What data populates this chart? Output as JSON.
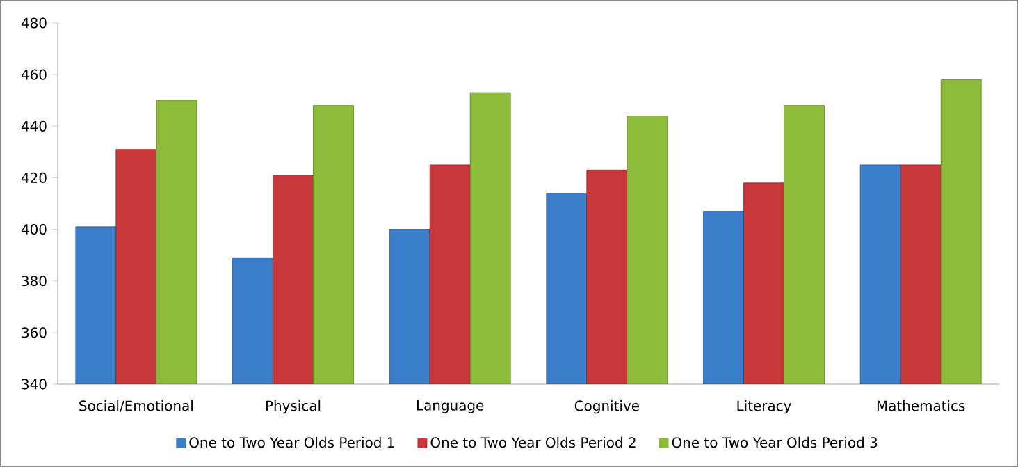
{
  "chart_data": {
    "type": "bar",
    "categories": [
      "Social/Emotional",
      "Physical",
      "Language",
      "Cognitive",
      "Literacy",
      "Mathematics"
    ],
    "series": [
      {
        "name": "One to Two Year Olds Period 1",
        "color": "#3a7dc9",
        "values": [
          401,
          389,
          400,
          414,
          407,
          425
        ]
      },
      {
        "name": "One to Two Year Olds Period 2",
        "color": "#c8373a",
        "values": [
          431,
          421,
          425,
          423,
          418,
          425
        ]
      },
      {
        "name": "One to Two Year Olds Period 3",
        "color": "#8dbb3a",
        "values": [
          450,
          448,
          453,
          444,
          448,
          458
        ]
      }
    ],
    "ylim": [
      340,
      480
    ],
    "yticks": [
      340,
      360,
      380,
      400,
      420,
      440,
      460,
      480
    ],
    "grid": false,
    "legend": "bottom"
  }
}
